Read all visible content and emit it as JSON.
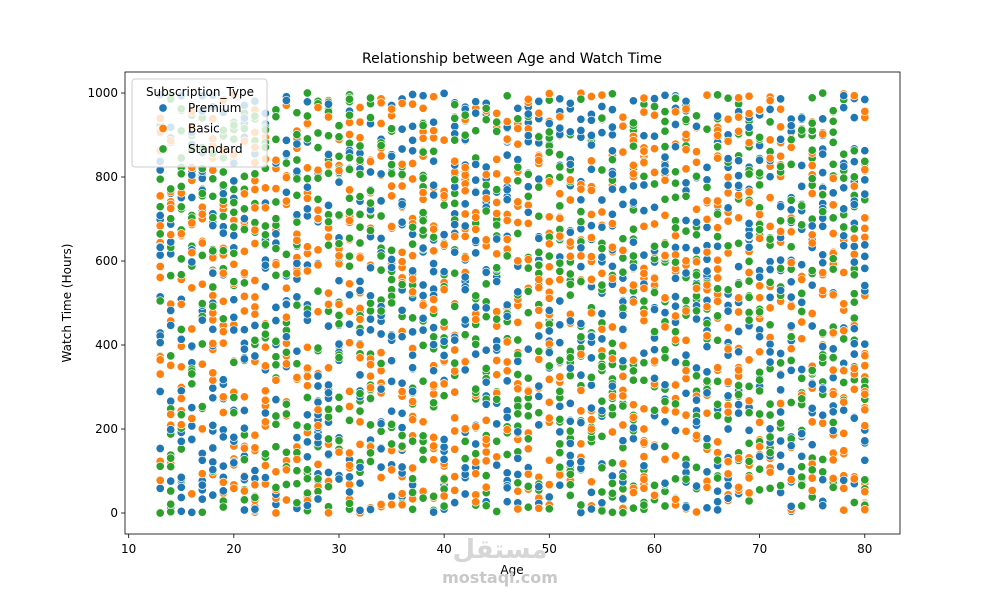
{
  "chart_data": {
    "type": "scatter",
    "title": "Relationship between Age and Watch Time",
    "xlabel": "Age",
    "ylabel": "Watch Time (Hours)",
    "xlim": [
      9.65,
      83.35
    ],
    "ylim": [
      -50,
      1050
    ],
    "x_ticks": [
      10,
      20,
      30,
      40,
      50,
      60,
      70,
      80
    ],
    "y_ticks": [
      0,
      200,
      400,
      600,
      800,
      1000
    ],
    "grid": false,
    "x_domain": [
      13,
      80
    ],
    "y_domain": [
      0,
      1000
    ],
    "legend": {
      "title": "Subscription_Type",
      "placement": "top-left"
    },
    "series": [
      {
        "name": "Premium",
        "color": "#1f77b4"
      },
      {
        "name": "Basic",
        "color": "#ff7f0e"
      },
      {
        "name": "Standard",
        "color": "#2ca02c"
      }
    ]
  },
  "watermark": {
    "text": "mostaql.com",
    "arabic": "مستقل"
  }
}
